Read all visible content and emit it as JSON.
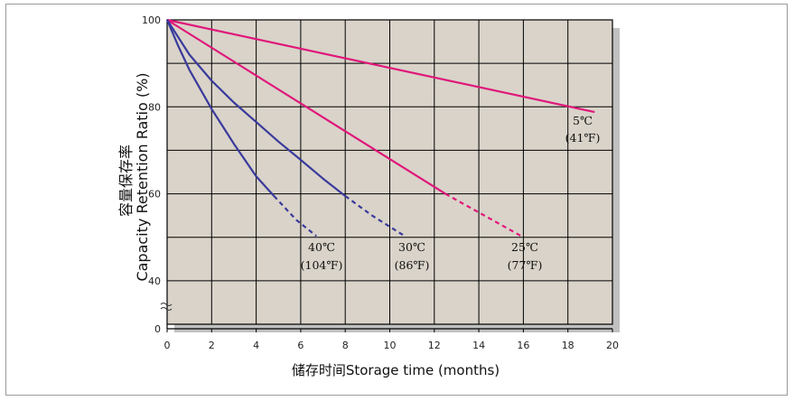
{
  "chart_data": {
    "type": "line",
    "xlabel": "储存时间Storage time (months)",
    "ylabel_cn": "容量保存率",
    "ylabel_en": "Capacity Retention Ratio (%)",
    "x_ticks": [
      "0",
      "2",
      "4",
      "6",
      "8",
      "10",
      "12",
      "14",
      "16",
      "18",
      "20"
    ],
    "y_ticks": [
      {
        "value": 100,
        "label": "100"
      },
      {
        "value": 80,
        "label": "80"
      },
      {
        "value": 60,
        "label": "60"
      },
      {
        "value": 40,
        "label": "40"
      },
      {
        "value": 0,
        "label": "0"
      }
    ],
    "xlim": [
      0,
      20
    ],
    "ylim_displayed": [
      30,
      100
    ],
    "axis_break": true,
    "grid": true,
    "colors": {
      "plot_bg": "#d9d3c9",
      "shadow": "#c0c0c0",
      "pink": "#e0177a",
      "blue": "#3a3a9c",
      "grid": "#000000"
    },
    "series": [
      {
        "name": "5℃ (41℉)",
        "label_line1": "5℃",
        "label_line2": "(41℉)",
        "color": "#e0177a",
        "solid": [
          [
            0,
            100
          ],
          [
            19.2,
            78.8
          ]
        ],
        "dashed": []
      },
      {
        "name": "25℃ (77℉)",
        "label_line1": "25℃",
        "label_line2": "(77℉)",
        "color": "#e0177a",
        "solid": [
          [
            0,
            100
          ],
          [
            12.5,
            60
          ]
        ],
        "dashed": [
          [
            12.5,
            60
          ],
          [
            16,
            50
          ]
        ]
      },
      {
        "name": "30℃ (86℉)",
        "label_line1": "30℃",
        "label_line2": "(86℉)",
        "color": "#3a3a9c",
        "solid": [
          [
            0,
            100
          ],
          [
            1,
            92
          ],
          [
            2,
            86
          ],
          [
            3,
            81
          ],
          [
            4,
            76.5
          ],
          [
            5,
            72
          ],
          [
            6,
            67.8
          ],
          [
            7,
            63.5
          ],
          [
            8,
            59.5
          ]
        ],
        "dashed": [
          [
            8,
            59.5
          ],
          [
            9.2,
            55
          ],
          [
            10.6,
            50.5
          ]
        ]
      },
      {
        "name": "40℃ (104℉)",
        "label_line1": "40℃",
        "label_line2": "(104℉)",
        "color": "#3a3a9c",
        "solid": [
          [
            0,
            100
          ],
          [
            0.5,
            94
          ],
          [
            1,
            88.5
          ],
          [
            2,
            79.5
          ],
          [
            3,
            71.5
          ],
          [
            4,
            64
          ],
          [
            4.8,
            59.5
          ]
        ],
        "dashed": [
          [
            4.8,
            59.5
          ],
          [
            5.8,
            54
          ],
          [
            6.7,
            50.3
          ]
        ]
      }
    ]
  }
}
